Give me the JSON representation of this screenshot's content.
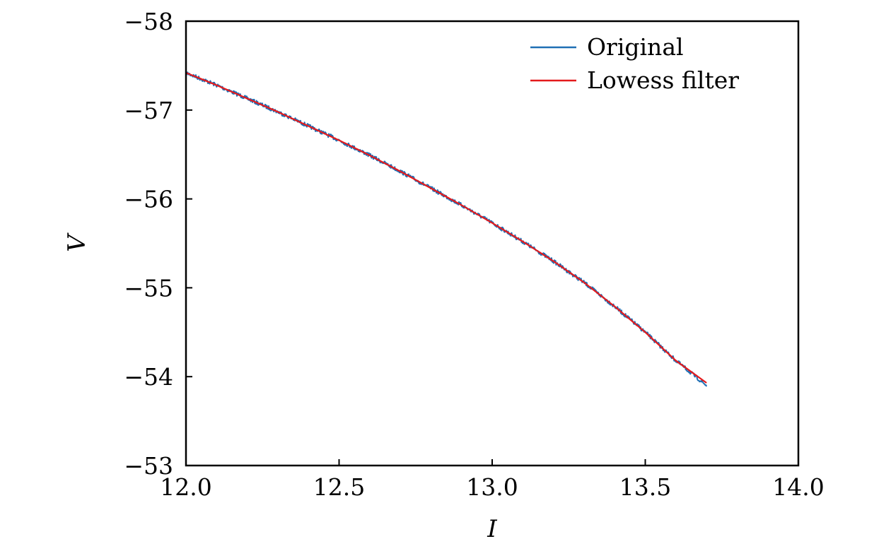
{
  "chart_data": {
    "type": "line",
    "title": "",
    "xlabel": "I",
    "ylabel": "V",
    "xlim": [
      12.0,
      14.0
    ],
    "ylim": [
      -58,
      -53
    ],
    "y_inverted": true,
    "grid": false,
    "legend_position": "top-right",
    "xticks": [
      12.0,
      12.5,
      13.0,
      13.5,
      14.0
    ],
    "xtick_labels": [
      "12.0",
      "12.5",
      "13.0",
      "13.5",
      "14.0"
    ],
    "yticks": [
      -58,
      -57,
      -56,
      -55,
      -54,
      -53
    ],
    "ytick_labels": [
      "−58",
      "−57",
      "−56",
      "−55",
      "−54",
      "−53"
    ],
    "series": [
      {
        "name": "Original",
        "color": "#1f6fb4",
        "noisy": true,
        "x": [
          12.0,
          12.1,
          12.2,
          12.3,
          12.4,
          12.5,
          12.6,
          12.7,
          12.8,
          12.9,
          13.0,
          13.1,
          13.2,
          13.3,
          13.4,
          13.5,
          13.6,
          13.7
        ],
        "y": [
          -57.42,
          -57.28,
          -57.13,
          -56.98,
          -56.82,
          -56.66,
          -56.49,
          -56.31,
          -56.12,
          -55.93,
          -55.73,
          -55.52,
          -55.3,
          -55.06,
          -54.79,
          -54.5,
          -54.18,
          -53.9
        ]
      },
      {
        "name": "Lowess filter",
        "color": "#e41a1c",
        "noisy": false,
        "x": [
          12.0,
          12.1,
          12.2,
          12.3,
          12.4,
          12.5,
          12.6,
          12.7,
          12.8,
          12.9,
          13.0,
          13.1,
          13.2,
          13.3,
          13.4,
          13.5,
          13.6,
          13.7
        ],
        "y": [
          -57.42,
          -57.28,
          -57.13,
          -56.98,
          -56.82,
          -56.66,
          -56.49,
          -56.31,
          -56.12,
          -55.93,
          -55.73,
          -55.52,
          -55.3,
          -55.06,
          -54.79,
          -54.5,
          -54.18,
          -53.93
        ]
      }
    ]
  }
}
